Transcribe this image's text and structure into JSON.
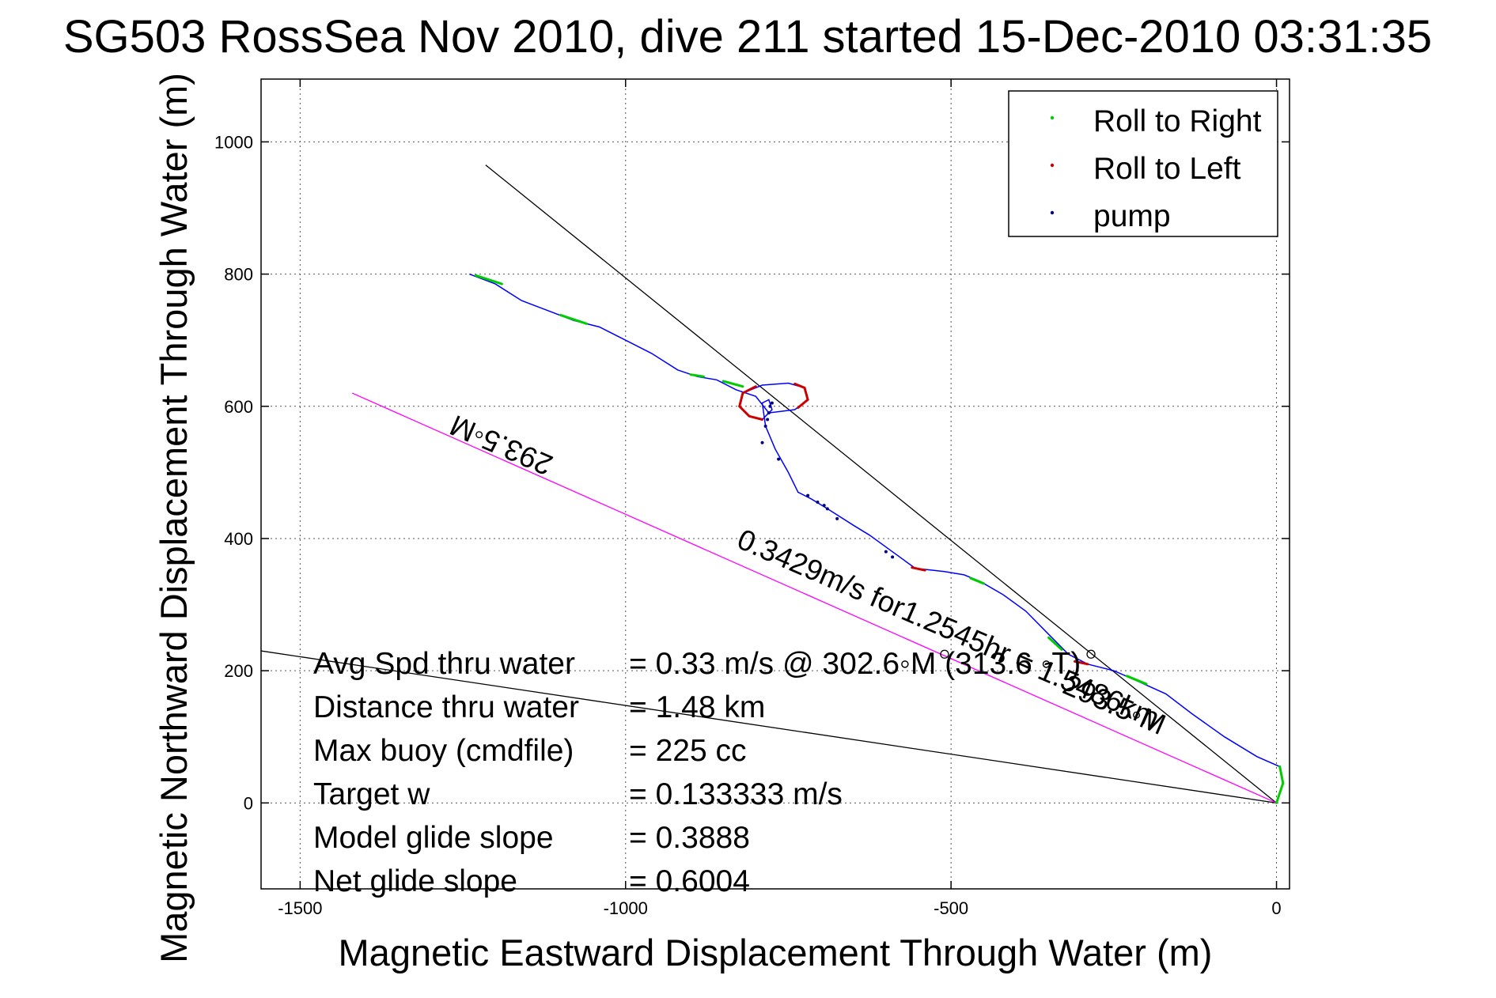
{
  "chart_data": {
    "type": "line",
    "title": "SG503 RossSea Nov 2010, dive 211 started 15-Dec-2010 03:31:35",
    "xlabel": "Magnetic Eastward Displacement Through Water (m)",
    "ylabel": "Magnetic Northward Displacement Through Water (m)",
    "xlim": [
      -1560,
      20
    ],
    "ylim": [
      -130,
      1095
    ],
    "xticks": [
      -1500,
      -1000,
      -500,
      0
    ],
    "yticks": [
      0,
      200,
      400,
      600,
      800,
      1000
    ],
    "grid": true,
    "legend_position": "top-right",
    "legend": [
      {
        "label": "Roll to Right",
        "color": "#00cc00"
      },
      {
        "label": "Roll to Left",
        "color": "#cc0000"
      },
      {
        "label": "pump",
        "color": "#000080"
      }
    ],
    "colors": {
      "track": "#0000ff",
      "roll_right": "#00cc00",
      "roll_left": "#cc0000",
      "pump": "#000080",
      "lines": "#000000",
      "magenta": "#ff00ff"
    },
    "track": [
      [
        0,
        0
      ],
      [
        10,
        30
      ],
      [
        5,
        55
      ],
      [
        -30,
        70
      ],
      [
        -80,
        100
      ],
      [
        -130,
        135
      ],
      [
        -170,
        165
      ],
      [
        -215,
        185
      ],
      [
        -250,
        200
      ],
      [
        -290,
        210
      ],
      [
        -320,
        225
      ],
      [
        -350,
        255
      ],
      [
        -385,
        290
      ],
      [
        -420,
        315
      ],
      [
        -455,
        335
      ],
      [
        -480,
        345
      ],
      [
        -510,
        350
      ],
      [
        -555,
        355
      ],
      [
        -590,
        380
      ],
      [
        -625,
        405
      ],
      [
        -650,
        420
      ],
      [
        -690,
        445
      ],
      [
        -715,
        460
      ],
      [
        -735,
        470
      ],
      [
        -750,
        500
      ],
      [
        -770,
        535
      ],
      [
        -785,
        570
      ],
      [
        -790,
        605
      ],
      [
        -780,
        610
      ],
      [
        -775,
        595
      ],
      [
        -790,
        580
      ],
      [
        -810,
        585
      ],
      [
        -825,
        600
      ],
      [
        -820,
        620
      ],
      [
        -790,
        632
      ],
      [
        -750,
        635
      ],
      [
        -725,
        628
      ],
      [
        -720,
        610
      ],
      [
        -740,
        595
      ],
      [
        -780,
        590
      ],
      [
        -800,
        615
      ],
      [
        -830,
        625
      ],
      [
        -860,
        640
      ],
      [
        -890,
        645
      ],
      [
        -920,
        655
      ],
      [
        -960,
        680
      ],
      [
        -1000,
        700
      ],
      [
        -1040,
        720
      ],
      [
        -1080,
        730
      ],
      [
        -1120,
        745
      ],
      [
        -1160,
        760
      ],
      [
        -1200,
        785
      ],
      [
        -1240,
        800
      ]
    ],
    "roll_right_segments": [
      [
        [
          0,
          0
        ],
        [
          10,
          30
        ],
        [
          5,
          55
        ]
      ],
      [
        [
          -200,
          180
        ],
        [
          -230,
          192
        ]
      ],
      [
        [
          -330,
          232
        ],
        [
          -350,
          250
        ]
      ],
      [
        [
          -450,
          332
        ],
        [
          -470,
          340
        ]
      ],
      [
        [
          -820,
          630
        ],
        [
          -850,
          638
        ]
      ],
      [
        [
          -880,
          645
        ],
        [
          -900,
          648
        ]
      ],
      [
        [
          -1060,
          725
        ],
        [
          -1100,
          738
        ]
      ],
      [
        [
          -1190,
          785
        ],
        [
          -1230,
          798
        ]
      ]
    ],
    "roll_left_segments": [
      [
        [
          -290,
          210
        ],
        [
          -310,
          214
        ]
      ],
      [
        [
          -540,
          352
        ],
        [
          -560,
          356
        ]
      ],
      [
        [
          -790,
          580
        ],
        [
          -810,
          585
        ],
        [
          -825,
          600
        ],
        [
          -820,
          620
        ],
        [
          -800,
          630
        ]
      ],
      [
        [
          -740,
          634
        ],
        [
          -725,
          628
        ],
        [
          -720,
          610
        ],
        [
          -735,
          598
        ]
      ]
    ],
    "pump_points": [
      [
        -785,
        570
      ],
      [
        -782,
        580
      ],
      [
        -780,
        590
      ],
      [
        -778,
        600
      ],
      [
        -775,
        605
      ],
      [
        -790,
        545
      ],
      [
        -765,
        520
      ],
      [
        -720,
        465
      ],
      [
        -705,
        455
      ],
      [
        -695,
        450
      ],
      [
        -690,
        445
      ],
      [
        -675,
        430
      ],
      [
        -600,
        380
      ],
      [
        -590,
        372
      ]
    ],
    "reference_lines": [
      {
        "from": [
          -1215,
          965
        ],
        "to": [
          0,
          0
        ],
        "color": "#000000"
      },
      {
        "from": [
          -1560,
          230
        ],
        "to": [
          0,
          0
        ],
        "color": "#000000"
      },
      {
        "from": [
          -1420,
          620
        ],
        "to": [
          0,
          0
        ],
        "color": "#ff00ff"
      }
    ],
    "markers": [
      {
        "x": -285,
        "y": 225
      },
      {
        "x": -510,
        "y": 225
      }
    ],
    "annotations": [
      {
        "text": "293.5◦M",
        "x": -1185,
        "y": 555,
        "rotate": 203.5
      },
      {
        "text": "0.3429m/s for1.2545hr = 1.5486km",
        "x": -510,
        "y": 250,
        "rotate": 23.5
      },
      {
        "text": "293.5◦M",
        "x": -255,
        "y": 135,
        "rotate": 23.5
      }
    ],
    "summary": [
      {
        "label": "Avg Spd thru water",
        "value": "=  0.33 m/s @ 302.6◦M (313.6 ◦T)"
      },
      {
        "label": "Distance thru water",
        "value": "=  1.48 km"
      },
      {
        "label": "Max buoy (cmdfile)",
        "value": "= 225 cc"
      },
      {
        "label": "Target w",
        "value": "= 0.133333 m/s"
      },
      {
        "label": "Model glide slope",
        "value": "= 0.3888"
      },
      {
        "label": "Net glide slope",
        "value": "= 0.6004"
      }
    ]
  }
}
